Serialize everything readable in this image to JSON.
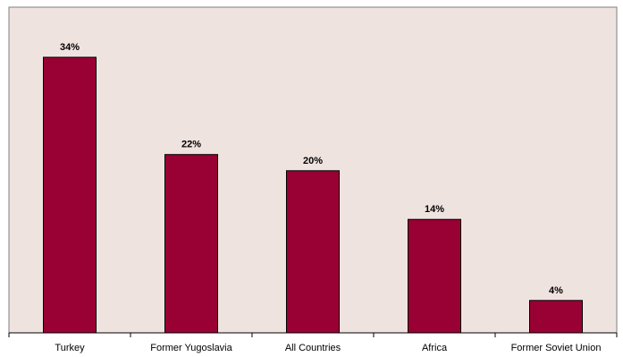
{
  "chart_data": {
    "type": "bar",
    "categories": [
      "Turkey",
      "Former Yugoslavia",
      "All Countries",
      "Africa",
      "Former Soviet Union"
    ],
    "values": [
      34,
      22,
      20,
      14,
      4
    ],
    "data_labels": [
      "34%",
      "22%",
      "20%",
      "14%",
      "4%"
    ],
    "title": "",
    "xlabel": "",
    "ylabel": "",
    "ylim": [
      0,
      40
    ],
    "grid": false,
    "legend": "none",
    "colors": {
      "bar": "#990033",
      "plot_background": "#efe3e0",
      "axis": "#000000"
    }
  }
}
